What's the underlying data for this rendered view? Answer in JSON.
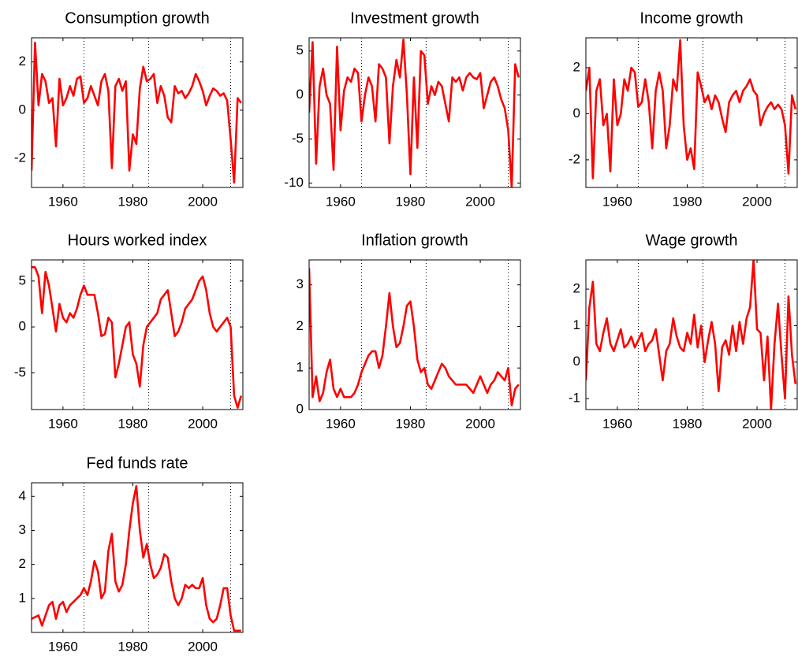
{
  "chart_data": [
    {
      "type": "line",
      "title": "Consumption growth",
      "xlim": [
        1951,
        2011.5
      ],
      "xticks": [
        1960,
        1980,
        2000
      ],
      "ylim": [
        -3.2,
        3
      ],
      "yticks": [
        -2,
        0,
        2
      ],
      "vlines": [
        1966,
        1984.5,
        2008
      ],
      "x": [
        1951,
        1952,
        1953,
        1954,
        1955,
        1956,
        1957,
        1958,
        1959,
        1960,
        1961,
        1962,
        1963,
        1964,
        1965,
        1966,
        1967,
        1968,
        1969,
        1970,
        1971,
        1972,
        1973,
        1974,
        1975,
        1976,
        1977,
        1978,
        1979,
        1980,
        1981,
        1982,
        1983,
        1984,
        1985,
        1986,
        1987,
        1988,
        1989,
        1990,
        1991,
        1992,
        1993,
        1994,
        1995,
        1996,
        1997,
        1998,
        1999,
        2000,
        2001,
        2002,
        2003,
        2004,
        2005,
        2006,
        2007,
        2008,
        2009,
        2010,
        2011
      ],
      "series": [
        {
          "color": "#ff0000",
          "values": [
            -2.5,
            2.8,
            0.2,
            1.5,
            1.2,
            0.3,
            0.5,
            -1.5,
            1.3,
            0.2,
            0.5,
            1.0,
            0.6,
            1.3,
            1.4,
            0.3,
            0.5,
            1.0,
            0.6,
            0.2,
            1.2,
            1.5,
            0.8,
            -2.4,
            1.0,
            1.3,
            0.8,
            1.2,
            -2.5,
            -1.0,
            -1.4,
            0.9,
            1.8,
            1.2,
            1.3,
            1.5,
            0.3,
            1.0,
            0.6,
            -0.3,
            -0.5,
            1.0,
            0.7,
            0.8,
            0.5,
            0.7,
            1.0,
            1.5,
            1.2,
            0.8,
            0.2,
            0.6,
            0.9,
            0.8,
            0.6,
            0.7,
            0.4,
            -1.2,
            -3.0,
            0.5,
            0.3
          ]
        }
      ]
    },
    {
      "type": "line",
      "title": "Investment growth",
      "xlim": [
        1951,
        2011.5
      ],
      "xticks": [
        1960,
        1980,
        2000
      ],
      "ylim": [
        -10.5,
        6.5
      ],
      "yticks": [
        -10,
        -5,
        0,
        5
      ],
      "vlines": [
        1966,
        1984.5,
        2008
      ],
      "x": [
        1951,
        1952,
        1953,
        1954,
        1955,
        1956,
        1957,
        1958,
        1959,
        1960,
        1961,
        1962,
        1963,
        1964,
        1965,
        1966,
        1967,
        1968,
        1969,
        1970,
        1971,
        1972,
        1973,
        1974,
        1975,
        1976,
        1977,
        1978,
        1979,
        1980,
        1981,
        1982,
        1983,
        1984,
        1985,
        1986,
        1987,
        1988,
        1989,
        1990,
        1991,
        1992,
        1993,
        1994,
        1995,
        1996,
        1997,
        1998,
        1999,
        2000,
        2001,
        2002,
        2003,
        2004,
        2005,
        2006,
        2007,
        2008,
        2009,
        2010,
        2011
      ],
      "series": [
        {
          "color": "#ff0000",
          "values": [
            -2,
            6,
            -7.8,
            1,
            3,
            0,
            -1,
            -8.5,
            5.5,
            -4,
            0.5,
            2,
            1.5,
            3,
            2.5,
            -3,
            0,
            2,
            1,
            -3,
            3.5,
            3,
            2,
            -5.5,
            1,
            4,
            2,
            6.3,
            0,
            -9,
            2,
            -6,
            5,
            4.5,
            -1,
            1,
            0,
            1.5,
            1,
            -1,
            -3,
            2,
            1.5,
            2,
            0.5,
            2,
            2.5,
            2,
            1.8,
            2.5,
            -1.5,
            0,
            1.5,
            2,
            1,
            -0.5,
            -1.5,
            -4,
            -10.5,
            3.5,
            2
          ]
        }
      ]
    },
    {
      "type": "line",
      "title": "Income growth",
      "xlim": [
        1951,
        2011.5
      ],
      "xticks": [
        1960,
        1980,
        2000
      ],
      "ylim": [
        -3.2,
        3.3
      ],
      "yticks": [
        -2,
        0,
        2
      ],
      "vlines": [
        1966,
        1984.5,
        2008
      ],
      "x": [
        1951,
        1952,
        1953,
        1954,
        1955,
        1956,
        1957,
        1958,
        1959,
        1960,
        1961,
        1962,
        1963,
        1964,
        1965,
        1966,
        1967,
        1968,
        1969,
        1970,
        1971,
        1972,
        1973,
        1974,
        1975,
        1976,
        1977,
        1978,
        1979,
        1980,
        1981,
        1982,
        1983,
        1984,
        1985,
        1986,
        1987,
        1988,
        1989,
        1990,
        1991,
        1992,
        1993,
        1994,
        1995,
        1996,
        1997,
        1998,
        1999,
        2000,
        2001,
        2002,
        2003,
        2004,
        2005,
        2006,
        2007,
        2008,
        2009,
        2010,
        2011
      ],
      "series": [
        {
          "color": "#ff0000",
          "values": [
            1,
            2,
            -2.8,
            1,
            1.5,
            -0.5,
            0,
            -2.5,
            1.5,
            -0.5,
            0,
            1.5,
            1,
            2,
            1.8,
            0.3,
            0.5,
            1.5,
            0.5,
            -1.5,
            1,
            1.8,
            1,
            -1.5,
            -0.5,
            1.5,
            1,
            3.2,
            -0.5,
            -2,
            -1.5,
            -2.4,
            1.8,
            1.2,
            0.5,
            0.8,
            0.2,
            0.8,
            0.5,
            -0.2,
            -0.8,
            0.5,
            0.8,
            1,
            0.5,
            1,
            1.2,
            1.5,
            1,
            0.8,
            -0.5,
            0,
            0.3,
            0.5,
            0.2,
            0.4,
            0.2,
            -0.5,
            -2.6,
            0.8,
            0.2
          ]
        }
      ]
    },
    {
      "type": "line",
      "title": "Hours worked index",
      "xlim": [
        1951,
        2011.5
      ],
      "xticks": [
        1960,
        1980,
        2000
      ],
      "ylim": [
        -9,
        7.3
      ],
      "yticks": [
        -5,
        0,
        5
      ],
      "vlines": [
        1966,
        1984.5,
        2008
      ],
      "x": [
        1951,
        1952,
        1953,
        1954,
        1955,
        1956,
        1957,
        1958,
        1959,
        1960,
        1961,
        1962,
        1963,
        1964,
        1965,
        1966,
        1967,
        1968,
        1969,
        1970,
        1971,
        1972,
        1973,
        1974,
        1975,
        1976,
        1977,
        1978,
        1979,
        1980,
        1981,
        1982,
        1983,
        1984,
        1985,
        1986,
        1987,
        1988,
        1989,
        1990,
        1991,
        1992,
        1993,
        1994,
        1995,
        1996,
        1997,
        1998,
        1999,
        2000,
        2001,
        2002,
        2003,
        2004,
        2005,
        2006,
        2007,
        2008,
        2009,
        2010,
        2011
      ],
      "series": [
        {
          "color": "#ff0000",
          "values": [
            6.5,
            6.5,
            5.5,
            1.5,
            6,
            4.5,
            2,
            -0.5,
            2.5,
            1,
            0.5,
            1.5,
            1,
            2,
            3.5,
            4.5,
            3.5,
            3.5,
            3.5,
            1.5,
            -1,
            -0.8,
            1,
            0.5,
            -5.5,
            -4,
            -2,
            0,
            0.5,
            -3,
            -4,
            -6.5,
            -2,
            0,
            0.5,
            1,
            1.5,
            3,
            3.5,
            4,
            1.5,
            -1,
            -0.5,
            0.5,
            2,
            2.5,
            3,
            4,
            5,
            5.5,
            4,
            1.5,
            0,
            -0.5,
            0,
            0.5,
            1,
            0,
            -7.5,
            -8.8,
            -7.5
          ]
        }
      ]
    },
    {
      "type": "line",
      "title": "Inflation growth",
      "xlim": [
        1951,
        2011.5
      ],
      "xticks": [
        1960,
        1980,
        2000
      ],
      "ylim": [
        0,
        3.6
      ],
      "yticks": [
        0,
        1,
        2,
        3
      ],
      "vlines": [
        1966,
        1984.5,
        2008
      ],
      "x": [
        1951,
        1952,
        1953,
        1954,
        1955,
        1956,
        1957,
        1958,
        1959,
        1960,
        1961,
        1962,
        1963,
        1964,
        1965,
        1966,
        1967,
        1968,
        1969,
        1970,
        1971,
        1972,
        1973,
        1974,
        1975,
        1976,
        1977,
        1978,
        1979,
        1980,
        1981,
        1982,
        1983,
        1984,
        1985,
        1986,
        1987,
        1988,
        1989,
        1990,
        1991,
        1992,
        1993,
        1994,
        1995,
        1996,
        1997,
        1998,
        1999,
        2000,
        2001,
        2002,
        2003,
        2004,
        2005,
        2006,
        2007,
        2008,
        2009,
        2010,
        2011
      ],
      "series": [
        {
          "color": "#ff0000",
          "values": [
            3.4,
            0.3,
            0.8,
            0.2,
            0.4,
            0.9,
            1.2,
            0.5,
            0.3,
            0.5,
            0.3,
            0.3,
            0.3,
            0.4,
            0.6,
            0.9,
            1.1,
            1.3,
            1.4,
            1.4,
            1.0,
            1.3,
            2.0,
            2.8,
            2.0,
            1.5,
            1.6,
            2.0,
            2.5,
            2.6,
            2.0,
            1.2,
            0.9,
            1.0,
            0.6,
            0.5,
            0.7,
            0.9,
            1.1,
            1.0,
            0.8,
            0.7,
            0.6,
            0.6,
            0.6,
            0.6,
            0.5,
            0.4,
            0.6,
            0.8,
            0.6,
            0.4,
            0.6,
            0.7,
            0.9,
            0.8,
            0.7,
            1.0,
            0.1,
            0.5,
            0.6
          ]
        }
      ]
    },
    {
      "type": "line",
      "title": "Wage growth",
      "xlim": [
        1951,
        2011.5
      ],
      "xticks": [
        1960,
        1980,
        2000
      ],
      "ylim": [
        -1.3,
        2.8
      ],
      "yticks": [
        -1,
        0,
        1,
        2
      ],
      "vlines": [
        1966,
        1984.5,
        2008
      ],
      "x": [
        1951,
        1952,
        1953,
        1954,
        1955,
        1956,
        1957,
        1958,
        1959,
        1960,
        1961,
        1962,
        1963,
        1964,
        1965,
        1966,
        1967,
        1968,
        1969,
        1970,
        1971,
        1972,
        1973,
        1974,
        1975,
        1976,
        1977,
        1978,
        1979,
        1980,
        1981,
        1982,
        1983,
        1984,
        1985,
        1986,
        1987,
        1988,
        1989,
        1990,
        1991,
        1992,
        1993,
        1994,
        1995,
        1996,
        1997,
        1998,
        1999,
        2000,
        2001,
        2002,
        2003,
        2004,
        2005,
        2006,
        2007,
        2008,
        2009,
        2010,
        2011
      ],
      "series": [
        {
          "color": "#ff0000",
          "values": [
            -0.5,
            1.5,
            2.2,
            0.5,
            0.3,
            0.8,
            1.2,
            0.5,
            0.3,
            0.6,
            0.9,
            0.4,
            0.5,
            0.7,
            0.4,
            0.6,
            0.8,
            0.3,
            0.5,
            0.6,
            0.9,
            0.2,
            -0.5,
            0.3,
            0.5,
            1.2,
            0.7,
            0.4,
            0.3,
            0.8,
            0.5,
            1.3,
            0.4,
            1.0,
            0.0,
            0.6,
            1.1,
            0.5,
            -0.8,
            0.4,
            0.6,
            0.2,
            1.0,
            0.3,
            1.1,
            0.5,
            1.2,
            1.5,
            2.8,
            0.9,
            0.8,
            -0.5,
            0.7,
            -1.3,
            0.5,
            1.6,
            0.2,
            -1.0,
            1.8,
            0.2,
            -0.6
          ]
        }
      ]
    },
    {
      "type": "line",
      "title": "Fed funds rate",
      "xlim": [
        1951,
        2011.5
      ],
      "xticks": [
        1960,
        1980,
        2000
      ],
      "ylim": [
        0,
        4.4
      ],
      "yticks": [
        1,
        2,
        3,
        4
      ],
      "vlines": [
        1966,
        1984.5,
        2008
      ],
      "x": [
        1951,
        1952,
        1953,
        1954,
        1955,
        1956,
        1957,
        1958,
        1959,
        1960,
        1961,
        1962,
        1963,
        1964,
        1965,
        1966,
        1967,
        1968,
        1969,
        1970,
        1971,
        1972,
        1973,
        1974,
        1975,
        1976,
        1977,
        1978,
        1979,
        1980,
        1981,
        1982,
        1983,
        1984,
        1985,
        1986,
        1987,
        1988,
        1989,
        1990,
        1991,
        1992,
        1993,
        1994,
        1995,
        1996,
        1997,
        1998,
        1999,
        2000,
        2001,
        2002,
        2003,
        2004,
        2005,
        2006,
        2007,
        2008,
        2009,
        2010,
        2011
      ],
      "series": [
        {
          "color": "#ff0000",
          "values": [
            0.4,
            0.45,
            0.5,
            0.2,
            0.5,
            0.8,
            0.9,
            0.4,
            0.8,
            0.9,
            0.6,
            0.8,
            0.9,
            1.0,
            1.1,
            1.3,
            1.1,
            1.5,
            2.1,
            1.8,
            1.0,
            1.2,
            2.4,
            2.9,
            1.5,
            1.2,
            1.4,
            2.0,
            3.0,
            3.8,
            4.3,
            3.0,
            2.2,
            2.6,
            2.0,
            1.6,
            1.7,
            1.9,
            2.3,
            2.2,
            1.5,
            1.0,
            0.8,
            1.0,
            1.4,
            1.3,
            1.4,
            1.3,
            1.3,
            1.6,
            0.8,
            0.4,
            0.3,
            0.4,
            0.8,
            1.3,
            1.3,
            0.5,
            0.05,
            0.05,
            0.05
          ]
        }
      ]
    }
  ]
}
